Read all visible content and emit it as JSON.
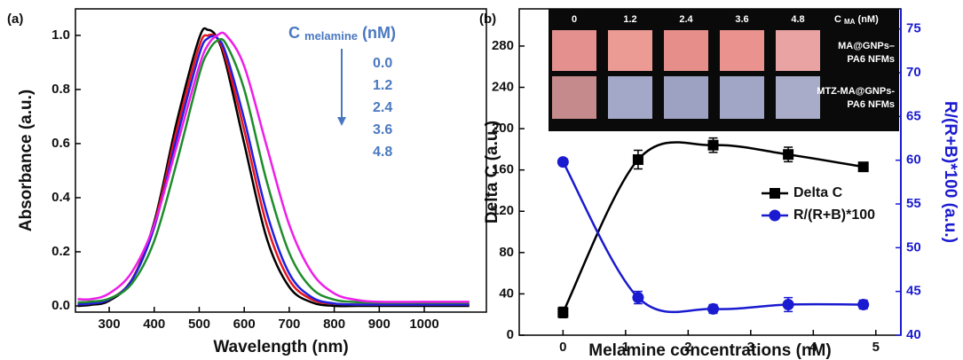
{
  "chart_data": [
    {
      "type": "line",
      "panel_label": "(a)",
      "xlabel": "Wavelength (nm)",
      "ylabel": "Absorbance (a.u.)",
      "legend_title": "C",
      "legend_title_sub": "melamine",
      "legend_title_unit": "(nM)",
      "legend_color": "#4a78c0",
      "x": [
        230,
        260,
        300,
        350,
        400,
        450,
        500,
        520,
        540,
        560,
        600,
        650,
        700,
        750,
        800,
        850,
        900,
        1000,
        1100
      ],
      "series": [
        {
          "name": "0.0",
          "color": "#000000",
          "values": [
            0.0,
            0.004,
            0.019,
            0.095,
            0.31,
            0.68,
            0.99,
            1.02,
            0.99,
            0.89,
            0.6,
            0.25,
            0.07,
            0.013,
            0.0,
            0.0,
            0.0,
            0.0,
            0.0
          ]
        },
        {
          "name": "1.2",
          "color": "#e8141c",
          "values": [
            0.006,
            0.009,
            0.024,
            0.096,
            0.3,
            0.65,
            0.96,
            1.0,
            0.99,
            0.91,
            0.65,
            0.3,
            0.096,
            0.024,
            0.008,
            0.005,
            0.005,
            0.005,
            0.005
          ]
        },
        {
          "name": "2.4",
          "color": "#1f1fe0",
          "values": [
            0.006,
            0.009,
            0.024,
            0.094,
            0.29,
            0.62,
            0.93,
            0.99,
            0.99,
            0.93,
            0.69,
            0.345,
            0.12,
            0.032,
            0.009,
            0.005,
            0.005,
            0.005,
            0.005
          ]
        },
        {
          "name": "3.6",
          "color": "#1e8c2a",
          "values": [
            0.013,
            0.016,
            0.027,
            0.082,
            0.24,
            0.53,
            0.855,
            0.94,
            0.98,
            0.967,
            0.8,
            0.46,
            0.196,
            0.065,
            0.023,
            0.014,
            0.012,
            0.012,
            0.012
          ]
        },
        {
          "name": "4.8",
          "color": "#ee1ee8",
          "values": [
            0.025,
            0.025,
            0.046,
            0.124,
            0.3,
            0.59,
            0.886,
            0.966,
            1.0,
            1.0,
            0.886,
            0.59,
            0.3,
            0.124,
            0.046,
            0.022,
            0.015,
            0.015,
            0.015
          ]
        }
      ],
      "xlim": [
        225,
        1138
      ],
      "xticks": [
        300,
        400,
        500,
        600,
        700,
        800,
        900,
        1000
      ],
      "ylim": [
        -0.023,
        1.098
      ],
      "yticks": [
        {
          "value": 0,
          "label": "0.0"
        },
        0.2,
        0.4,
        0.6,
        0.8,
        {
          "value": 1,
          "label": "1.0"
        }
      ],
      "grid": false
    },
    {
      "type": "line",
      "panel_label": "(b)",
      "xlabel": "Melamine concentrations (nM)",
      "ylabel": "Delta C (a.u.)",
      "y2label": "R/(R+B)*100 (a.u.)",
      "y2color": "#1a1ad0",
      "x": [
        0,
        1.2,
        2.4,
        3.6,
        4.8
      ],
      "series": [
        {
          "name": "Delta C",
          "color": "#000000",
          "marker": "square",
          "values": [
            22,
            170,
            184,
            175,
            163
          ],
          "errors": [
            5,
            9,
            7,
            7,
            3
          ]
        },
        {
          "name": "R/(R+B)*100",
          "color": "#1a1ad0",
          "marker": "circle",
          "axis": "y2",
          "values": [
            59.8,
            44.3,
            43.0,
            43.5,
            43.5
          ],
          "errors": [
            0.4,
            0.7,
            0.5,
            0.8,
            0.5
          ]
        }
      ],
      "xlim": [
        -0.7,
        5.4
      ],
      "xticks": [
        0,
        1,
        2,
        3,
        4,
        5
      ],
      "ylim": [
        0,
        316
      ],
      "yticks": [
        0,
        40,
        80,
        120,
        160,
        200,
        240,
        280
      ],
      "y2lim": [
        40,
        77.3
      ],
      "y2ticks": [
        40,
        45,
        50,
        55,
        60,
        65,
        70,
        75
      ],
      "grid": false,
      "inset": {
        "column_labels": [
          "0",
          "1.2",
          "2.4",
          "3.6",
          "4.8"
        ],
        "axis_label": "C",
        "axis_label_sub": "MA",
        "axis_label_unit": "(nM)",
        "row_labels": [
          [
            "MA@GNPs–",
            "PA6 NFMs"
          ],
          [
            "MTZ-MA@GNPs-",
            "PA6 NFMs"
          ]
        ]
      }
    }
  ]
}
